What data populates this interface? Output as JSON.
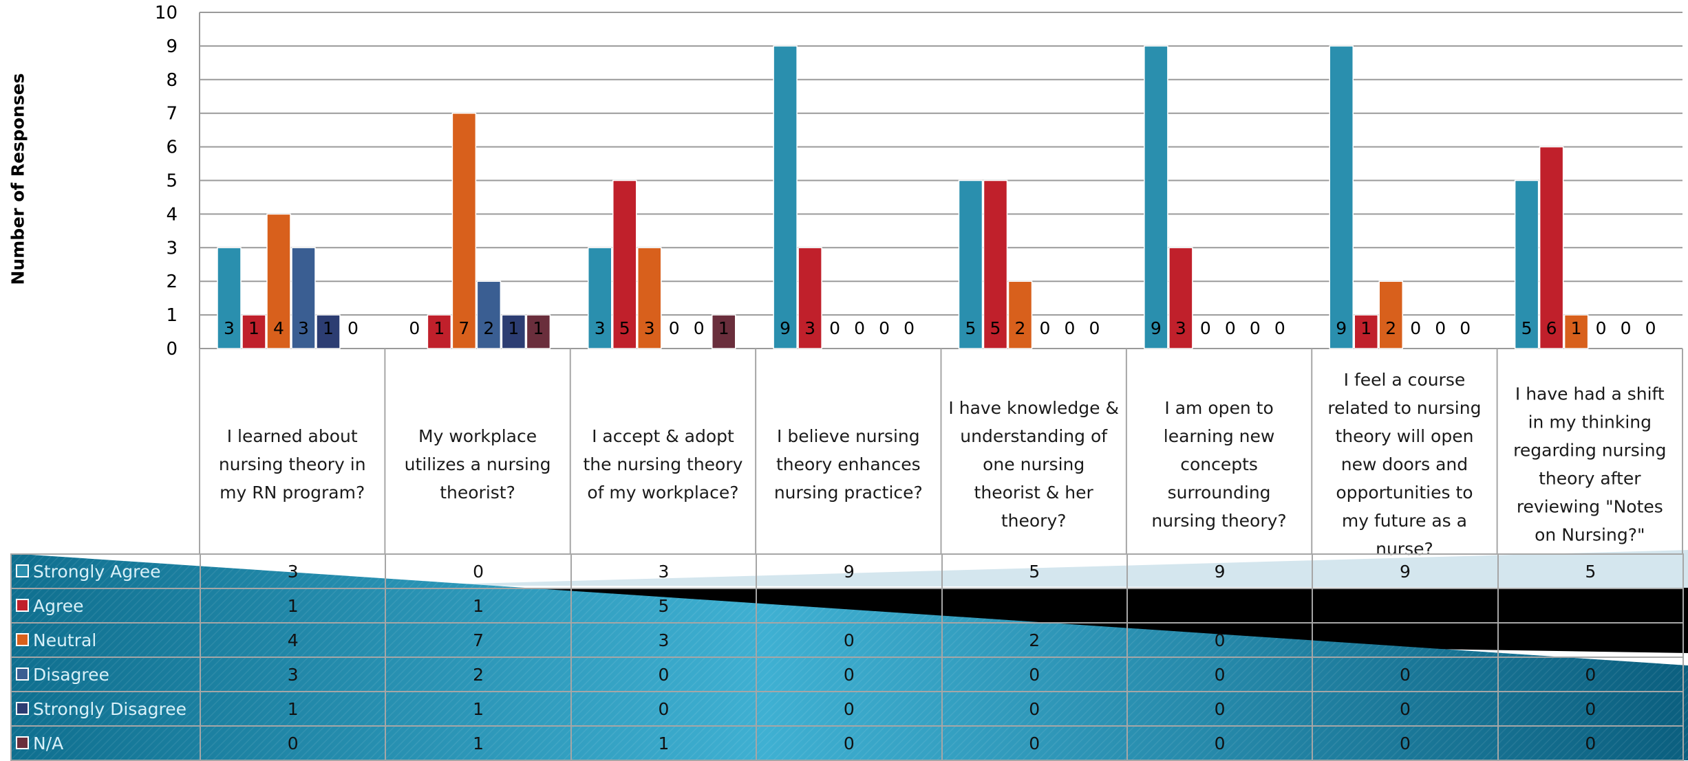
{
  "chart_data": {
    "type": "bar",
    "ylabel": "Number of Responses",
    "ylim": [
      0,
      10
    ],
    "yticks": [
      0,
      1,
      2,
      3,
      4,
      5,
      6,
      7,
      8,
      9,
      10
    ],
    "grid": true,
    "legend_position": "table-left",
    "categories": [
      "I learned about nursing theory in my RN program?",
      "My workplace utilizes a nursing theorist?",
      "I accept & adopt the nursing theory of my workplace?",
      "I believe nursing theory enhances nursing practice?",
      "I have knowledge & understanding of one nursing theorist & her theory?",
      "I am open to learning new concepts surrounding nursing theory?",
      "I feel a course related to nursing theory will open new doors and opportunities to my future as a nurse?",
      "I have had a shift in my thinking regarding nursing theory after reviewing \"Notes on Nursing?\""
    ],
    "category_lines": [
      [
        "I learned about",
        "nursing theory in",
        "my RN program?"
      ],
      [
        "My workplace",
        "utilizes a nursing",
        "theorist?"
      ],
      [
        "I accept & adopt",
        "the nursing theory",
        "of my workplace?"
      ],
      [
        "I believe nursing",
        "theory enhances",
        "nursing practice?"
      ],
      [
        "I have knowledge &",
        "understanding of",
        "one nursing",
        "theorist & her",
        "theory?"
      ],
      [
        "I am open to",
        "learning new",
        "concepts",
        "surrounding",
        "nursing theory?"
      ],
      [
        "I feel a course",
        "related to nursing",
        "theory will open",
        "new doors and",
        "opportunities to",
        "my future as a",
        "nurse?"
      ],
      [
        "I have had a shift",
        "in my thinking",
        "regarding nursing",
        "theory after",
        "reviewing \"Notes",
        "on Nursing?\""
      ]
    ],
    "series": [
      {
        "name": "Strongly Agree",
        "color": "#2a8fae",
        "values": [
          3,
          0,
          3,
          9,
          5,
          9,
          9,
          5
        ]
      },
      {
        "name": "Agree",
        "color": "#c0202b",
        "values": [
          1,
          1,
          5,
          3,
          5,
          3,
          1,
          6
        ]
      },
      {
        "name": "Neutral",
        "color": "#d8601c",
        "values": [
          4,
          7,
          3,
          0,
          2,
          0,
          2,
          1
        ]
      },
      {
        "name": "Disagree",
        "color": "#3a5e92",
        "values": [
          3,
          2,
          0,
          0,
          0,
          0,
          0,
          0
        ]
      },
      {
        "name": "Strongly Disagree",
        "color": "#2c3d72",
        "values": [
          1,
          1,
          0,
          0,
          0,
          0,
          0,
          0
        ]
      },
      {
        "name": "N/A",
        "color": "#6a2e3c",
        "values": [
          0,
          1,
          1,
          0,
          0,
          0,
          0,
          0
        ]
      }
    ]
  }
}
